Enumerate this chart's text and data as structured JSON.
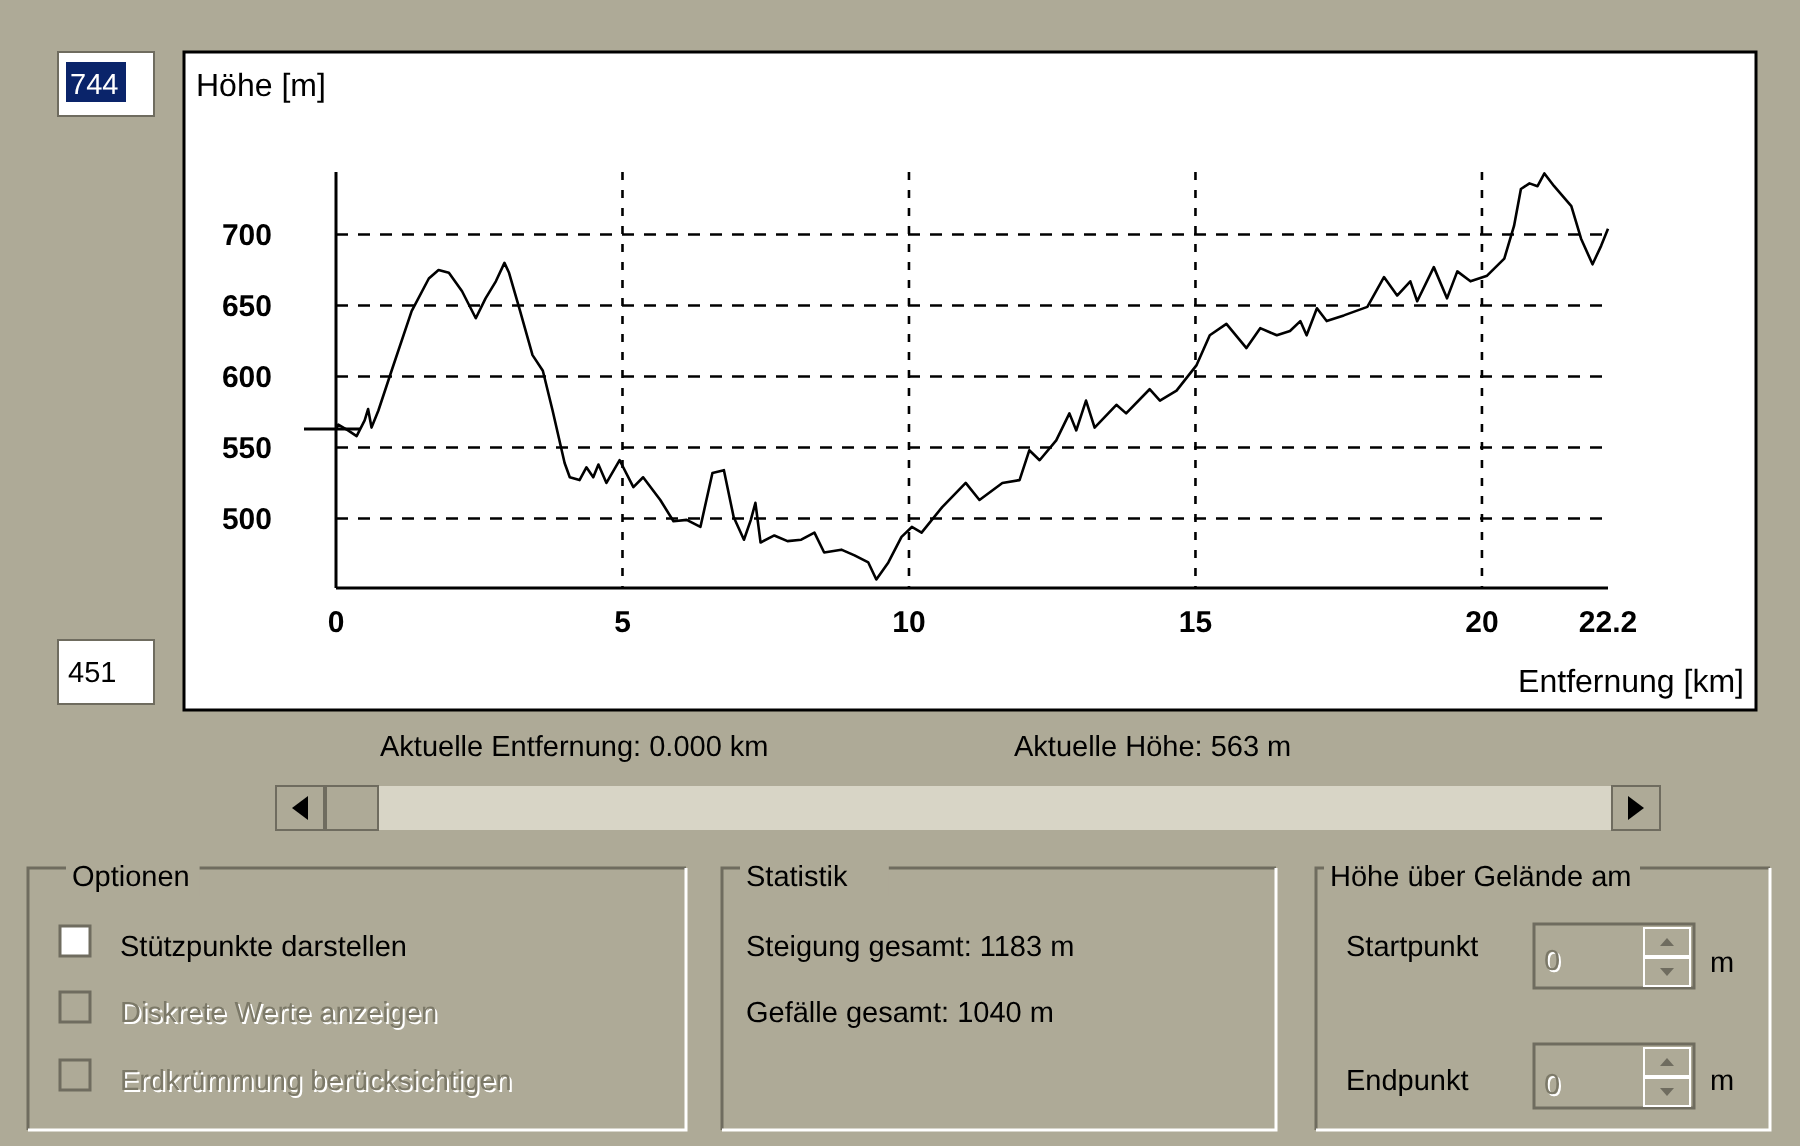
{
  "chart_data": {
    "type": "line",
    "title": "Höhe [m]",
    "xlabel": "Entfernung [km]",
    "x": [
      0,
      0.04,
      0.21,
      0.36,
      0.5,
      0.56,
      0.62,
      0.74,
      0.97,
      1.32,
      1.62,
      1.79,
      1.97,
      2.2,
      2.44,
      2.61,
      2.79,
      2.94,
      3.02,
      3.2,
      3.43,
      3.61,
      3.78,
      3.99,
      4.08,
      4.25,
      4.37,
      4.49,
      4.58,
      4.72,
      4.95,
      5.19,
      5.36,
      5.66,
      5.89,
      6.12,
      6.36,
      6.57,
      6.77,
      6.94,
      7.12,
      7.24,
      7.32,
      7.41,
      7.65,
      7.88,
      8.12,
      8.35,
      8.52,
      8.82,
      9.05,
      9.29,
      9.43,
      9.64,
      9.87,
      10.05,
      10.22,
      10.58,
      10.99,
      11.23,
      11.63,
      11.93,
      12.1,
      12.28,
      12.57,
      12.8,
      12.92,
      13.09,
      13.24,
      13.62,
      13.79,
      14.2,
      14.38,
      14.67,
      15.02,
      15.25,
      15.54,
      15.89,
      16.13,
      16.42,
      16.65,
      16.83,
      16.94,
      17.12,
      17.29,
      17.59,
      18,
      18.29,
      18.52,
      18.75,
      18.87,
      19.16,
      19.39,
      19.57,
      19.8,
      20.09,
      20.39,
      20.56,
      20.68,
      20.83,
      20.97,
      21.09,
      21.26,
      21.56,
      21.73,
      21.93,
      22.08,
      22.2
    ],
    "series": [
      {
        "color": "#000000",
        "values": [
          563,
          566,
          562,
          558,
          569,
          577,
          564,
          576,
          604,
          646,
          669,
          675,
          673,
          660,
          641,
          655,
          667,
          680,
          673,
          648,
          615,
          604,
          576,
          539,
          529,
          527,
          536,
          529,
          538,
          525,
          541,
          522,
          529,
          513,
          498,
          499,
          494,
          532,
          534,
          501,
          485,
          499,
          511,
          483,
          488,
          484,
          485,
          490,
          476,
          478,
          474,
          469,
          457,
          469,
          487,
          494,
          490,
          508,
          525,
          513,
          525,
          527,
          548,
          541,
          555,
          574,
          562,
          583,
          564,
          580,
          574,
          591,
          583,
          590,
          608,
          629,
          637,
          620,
          634,
          629,
          632,
          639,
          629,
          648,
          639,
          643,
          649,
          670,
          657,
          667,
          653,
          677,
          655,
          674,
          667,
          671,
          683,
          706,
          732,
          736,
          734,
          743,
          734,
          720,
          697,
          679,
          692,
          704
        ]
      }
    ],
    "xlim": [
      0,
      22.2
    ],
    "xticks": [
      0,
      5,
      10,
      15,
      20,
      22.2
    ],
    "ylim": [
      451,
      744
    ],
    "yticks": [
      500,
      550,
      600,
      650,
      700
    ],
    "grid": true,
    "annotations": [
      "Aktuelle Entfernung: 0.000 km",
      "Aktuelle Höhe: 563 m",
      "Optionen",
      "Stützpunkte darstellen",
      "Diskrete Werte anzeigen",
      "Erdkrümmung berücksichtigen",
      "Statistik",
      "Steigung gesamt: 1183 m",
      "Gefälle gesamt: 1040 m",
      "Höhe über Gelände am",
      "Startpunkt",
      "0",
      "m",
      "Endpunkt",
      "0",
      "m",
      "744",
      "451"
    ]
  }
}
